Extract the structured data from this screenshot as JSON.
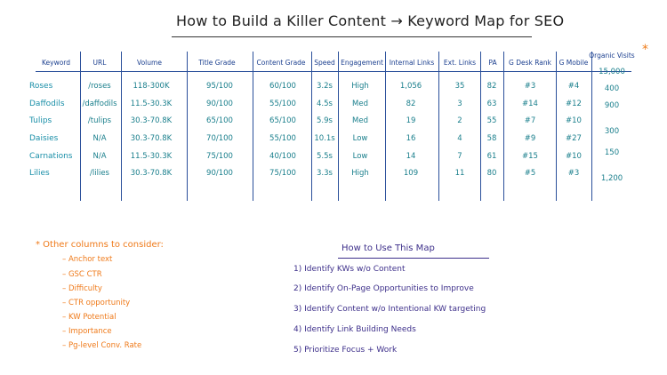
{
  "title": "How to Build a Killer Content → Keyword Map for SEO",
  "asterisk": "*",
  "headers": [
    "Keyword",
    "URL",
    "Volume",
    "Title Grade",
    "Content Grade",
    "Speed",
    "Engagement",
    "Internal Links",
    "Ext. Links",
    "PA",
    "G Desk Rank",
    "G Mobile",
    "Organic Visits"
  ],
  "rows": [
    {
      "keyword": "Roses",
      "url": "/roses",
      "volume": "118-300K",
      "title_grade": "95/100",
      "content_grade": "60/100",
      "speed": "3.2s",
      "engagement": "High",
      "internal_links": "1,056",
      "ext_links": "35",
      "pa": "82",
      "desk_rank": "#3",
      "mobile": "#4",
      "visits": "15,000"
    },
    {
      "keyword": "Daffodils",
      "url": "/daffodils",
      "volume": "11.5-30.3K",
      "title_grade": "90/100",
      "content_grade": "55/100",
      "speed": "4.5s",
      "engagement": "Med",
      "internal_links": "82",
      "ext_links": "3",
      "pa": "63",
      "desk_rank": "#14",
      "mobile": "#12",
      "visits": "400"
    },
    {
      "keyword": "Tulips",
      "url": "/tulips",
      "volume": "30.3-70.8K",
      "title_grade": "65/100",
      "content_grade": "65/100",
      "speed": "5.9s",
      "engagement": "Med",
      "internal_links": "19",
      "ext_links": "2",
      "pa": "55",
      "desk_rank": "#7",
      "mobile": "#10",
      "visits": "900"
    },
    {
      "keyword": "Daisies",
      "url": "N/A",
      "volume": "30.3-70.8K",
      "title_grade": "70/100",
      "content_grade": "55/100",
      "speed": "10.1s",
      "engagement": "Low",
      "internal_links": "16",
      "ext_links": "4",
      "pa": "58",
      "desk_rank": "#9",
      "mobile": "#27",
      "visits": "300"
    },
    {
      "keyword": "Carnations",
      "url": "N/A",
      "volume": "11.5-30.3K",
      "title_grade": "75/100",
      "content_grade": "40/100",
      "speed": "5.5s",
      "engagement": "Low",
      "internal_links": "14",
      "ext_links": "7",
      "pa": "61",
      "desk_rank": "#15",
      "mobile": "#10",
      "visits": "150"
    },
    {
      "keyword": "Lilies",
      "url": "/lilies",
      "volume": "30.3-70.8K",
      "title_grade": "90/100",
      "content_grade": "75/100",
      "speed": "3.3s",
      "engagement": "High",
      "internal_links": "109",
      "ext_links": "11",
      "pa": "80",
      "desk_rank": "#5",
      "mobile": "#3",
      "visits": "1,200"
    }
  ],
  "other_columns": {
    "title": "* Other columns to consider:",
    "items": [
      "– Anchor text",
      "– GSC CTR",
      "– Difficulty",
      "– CTR opportunity",
      "– KW Potential",
      "– Importance",
      "– Pg-level Conv. Rate"
    ]
  },
  "how_to_use": {
    "title": "How to Use This Map",
    "items": [
      "1) Identify KWs w/o Content",
      "2) Identify On-Page Opportunities to Improve",
      "3) Identify Content w/o Intentional KW targeting",
      "4) Identify Link Building Needs",
      "5) Prioritize Focus + Work"
    ]
  }
}
